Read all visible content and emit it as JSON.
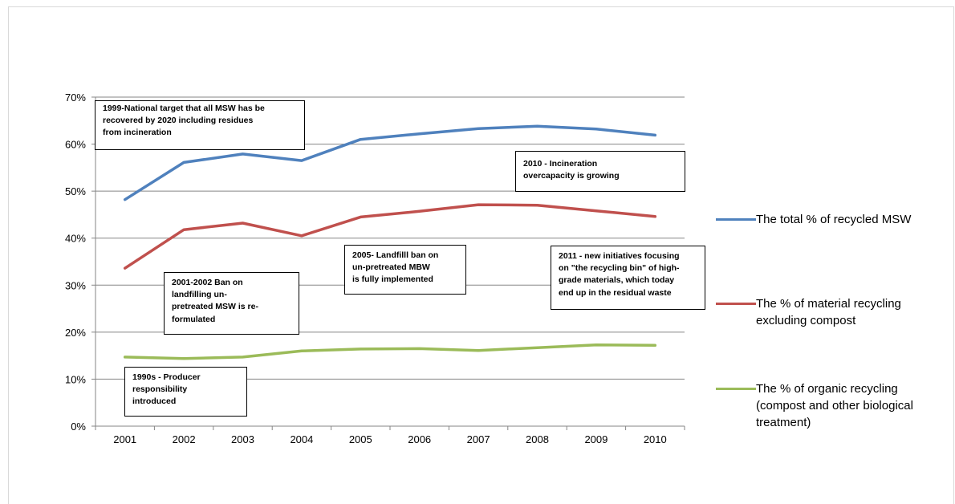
{
  "chart_data": {
    "type": "line",
    "title": "",
    "xlabel": "",
    "ylabel": "",
    "categories": [
      "2001",
      "2002",
      "2003",
      "2004",
      "2005",
      "2006",
      "2007",
      "2008",
      "2009",
      "2010"
    ],
    "ylim": [
      0,
      70
    ],
    "yticks": [
      0,
      10,
      20,
      30,
      40,
      50,
      60,
      70
    ],
    "ytick_labels": [
      "0%",
      "10%",
      "20%",
      "30%",
      "40%",
      "50%",
      "60%",
      "70%"
    ],
    "grid": "horizontal",
    "legend_position": "right",
    "series": [
      {
        "name": "The total % of recycled MSW",
        "color": "#4f81bd",
        "values": [
          48.2,
          56.1,
          57.9,
          56.5,
          61.0,
          62.2,
          63.3,
          63.8,
          63.2,
          61.9
        ]
      },
      {
        "name": "The % of material recycling excluding compost",
        "color": "#c0504d",
        "values": [
          33.6,
          41.8,
          43.2,
          40.5,
          44.5,
          45.7,
          47.1,
          47.0,
          45.8,
          44.6
        ]
      },
      {
        "name": "The % of organic recycling (compost and other biological treatment)",
        "color": "#9bbb59",
        "values": [
          14.7,
          14.4,
          14.7,
          16.0,
          16.4,
          16.5,
          16.1,
          16.7,
          17.3,
          17.2
        ]
      }
    ],
    "annotations": [
      {
        "id": "a1999",
        "text": "1999-National target that all MSW has be\nrecovered  by 2020 including residues\nfrom incineration"
      },
      {
        "id": "a2010",
        "text": "2010 - Incineration\novercapacity  is growing"
      },
      {
        "id": "a2005",
        "text": "2005- Landfilll ban on\nun-pretreated MBW\nis fully implemented"
      },
      {
        "id": "a2011",
        "text": "2011 - new initiatives  focusing\non \"the recycling bin\" of high-\ngrade materials, which today\nend up in the residual waste"
      },
      {
        "id": "a2001",
        "text": "2001-2002 Ban on\nlandfilling  un-\npretreated MSW is re-\nformulated"
      },
      {
        "id": "a1990",
        "text": "1990s  - Producer\nresponsibility\nintroduced"
      }
    ]
  }
}
